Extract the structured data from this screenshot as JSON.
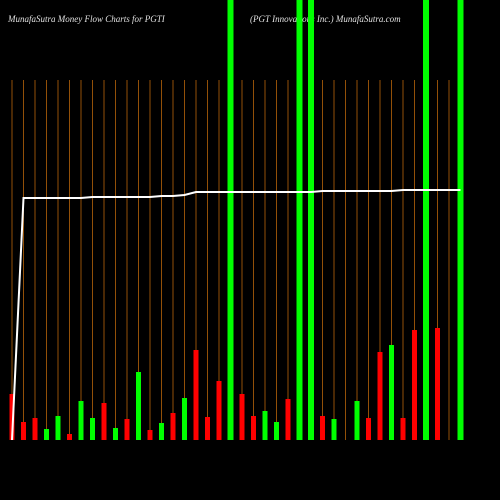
{
  "chart_data": {
    "type": "bar",
    "title": "MunafaSutra  Money Flow  Charts for PGTI",
    "subtitle": "(PGT Innovations  Inc.) MunafaSutra.com",
    "categories": [
      null,
      null,
      null,
      null,
      null,
      null,
      null,
      null,
      null,
      null,
      null,
      null,
      null,
      null,
      null,
      null,
      null,
      null,
      null,
      null,
      null,
      null,
      null,
      null,
      null,
      null,
      null,
      null,
      null,
      null,
      null,
      null,
      null,
      null,
      null,
      null,
      null,
      null,
      null,
      null
    ],
    "series": [
      {
        "values": [
          46,
          18,
          22,
          11,
          24,
          6,
          39,
          22,
          37,
          12,
          21,
          68,
          10,
          17,
          27,
          42,
          90,
          23,
          59,
          440,
          46,
          24,
          29,
          18,
          41,
          440,
          440,
          24,
          21,
          null,
          39,
          22,
          88,
          95,
          22,
          110,
          440,
          112,
          null,
          440
        ],
        "colors": [
          "#ff0000",
          "#ff0000",
          "#ff0000",
          "#00ff00",
          "#00ff00",
          "#ff0000",
          "#00ff00",
          "#00ff00",
          "#ff0000",
          "#00ff00",
          "#ff0000",
          "#00ff00",
          "#ff0000",
          "#00ff00",
          "#ff0000",
          "#00ff00",
          "#ff0000",
          "#ff0000",
          "#ff0000",
          "#00ff00",
          "#ff0000",
          "#ff0000",
          "#00ff00",
          "#00ff00",
          "#ff0000",
          "#00ff00",
          "#00ff00",
          "#ff0000",
          "#00ff00",
          "#00ff00",
          "#00ff00",
          "#ff0000",
          "#ff0000",
          "#00ff00",
          "#ff0000",
          "#ff0000",
          "#00ff00",
          "#ff0000",
          "#00ff00",
          "#00ff00"
        ]
      },
      {
        "type": "line",
        "color": "#ffffff",
        "values": [
          0,
          242,
          242,
          242,
          242,
          242,
          242,
          243,
          243,
          243,
          243,
          243,
          243,
          244,
          244,
          245,
          248,
          248,
          248,
          248,
          248,
          248,
          248,
          248,
          248,
          248,
          248,
          249,
          249,
          249,
          249,
          249,
          249,
          249,
          250,
          250,
          250,
          250,
          250,
          250
        ]
      }
    ],
    "ylim": [
      0,
      440
    ],
    "grid": true,
    "grid_color": "#b8650a"
  }
}
